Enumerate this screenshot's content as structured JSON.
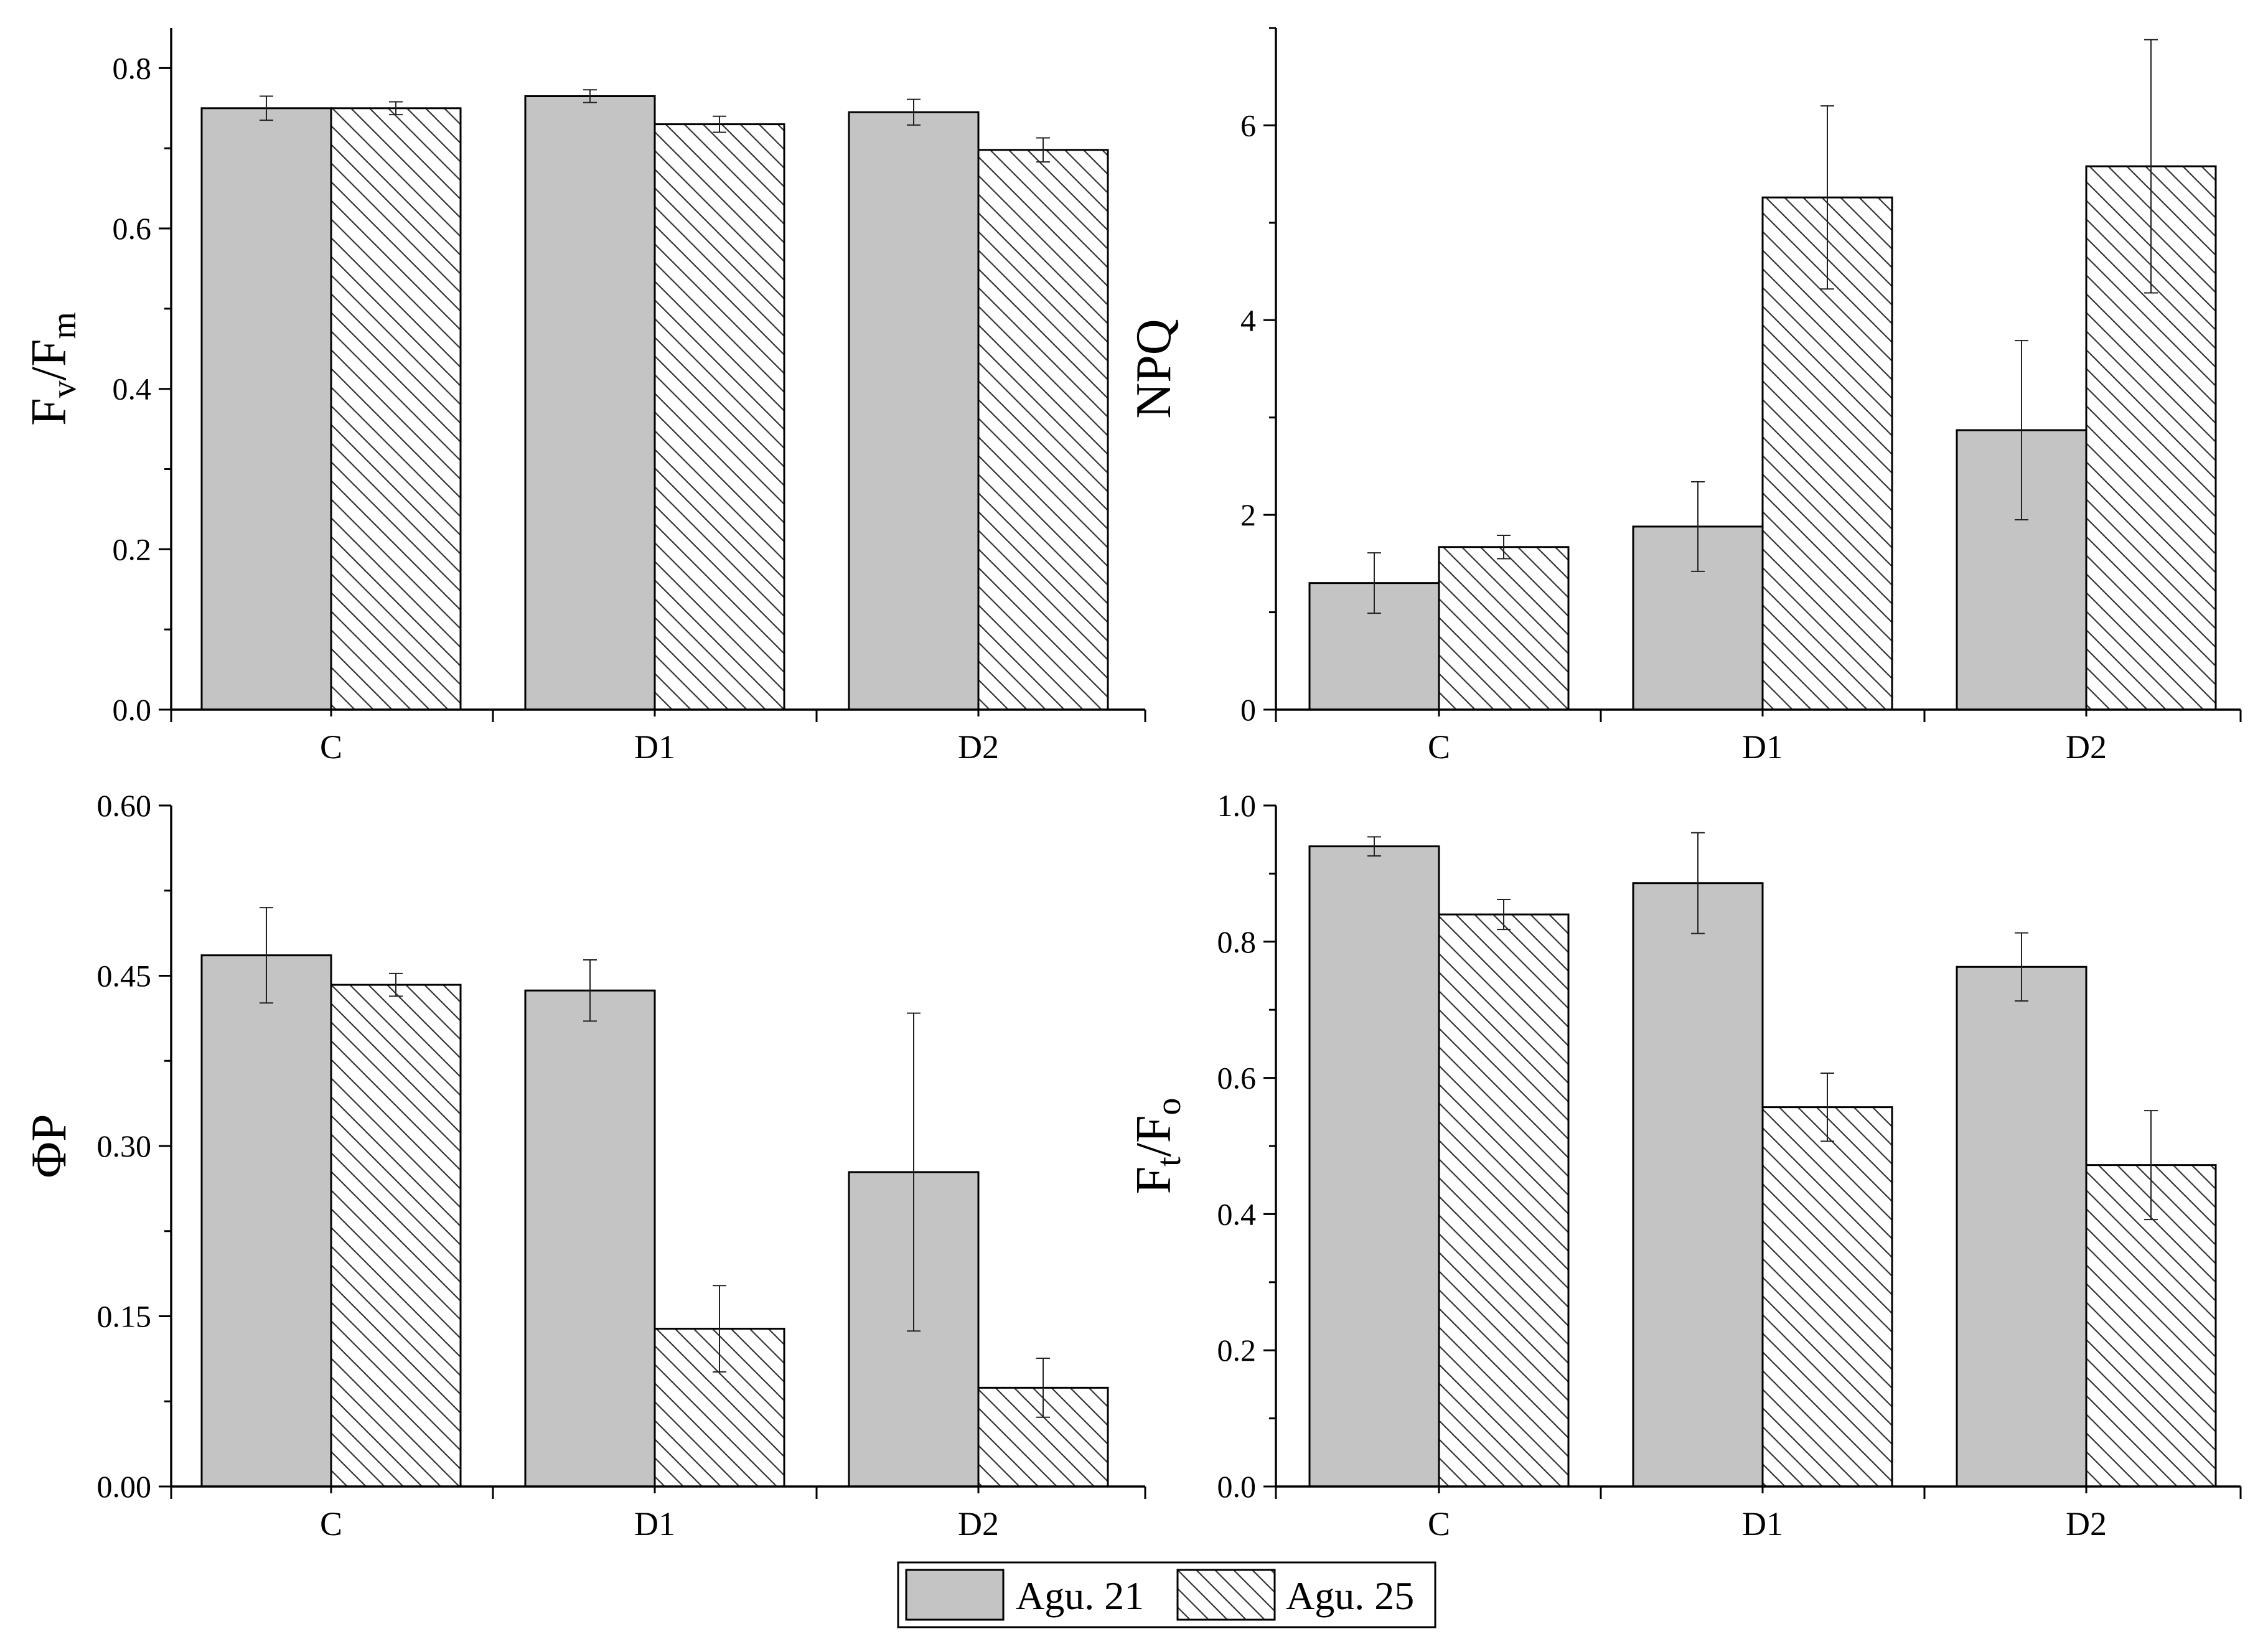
{
  "legend": {
    "series": [
      {
        "name": "Agu. 21",
        "style": "solid"
      },
      {
        "name": "Agu. 25",
        "style": "hatched"
      }
    ]
  },
  "colors": {
    "agu21_fill": "#c4c4c4",
    "agu25_fill": "#ffffff",
    "hatch": "#333333",
    "axis": "#000000"
  },
  "chart_data": [
    {
      "type": "bar",
      "panel": "top-left",
      "ylabel": {
        "main": "F",
        "sub1": "v",
        "mid": "/F",
        "sub2": "m"
      },
      "categories": [
        "C",
        "D1",
        "D2"
      ],
      "ylim": [
        0,
        0.85
      ],
      "yticks": [
        0.0,
        0.2,
        0.4,
        0.6,
        0.8
      ],
      "ytick_labels": [
        "0.0",
        "0.2",
        "0.4",
        "0.6",
        "0.8"
      ],
      "minor_ticks": true,
      "series": [
        {
          "name": "Agu. 21",
          "values": [
            0.75,
            0.765,
            0.745
          ],
          "errors": [
            0.015,
            0.008,
            0.016
          ]
        },
        {
          "name": "Agu. 25",
          "values": [
            0.75,
            0.73,
            0.698
          ],
          "errors": [
            0.008,
            0.01,
            0.015
          ]
        }
      ]
    },
    {
      "type": "bar",
      "panel": "top-right",
      "ylabel": {
        "main": "NPQ"
      },
      "categories": [
        "C",
        "D1",
        "D2"
      ],
      "ylim": [
        0,
        7
      ],
      "yticks": [
        0,
        2,
        4,
        6
      ],
      "ytick_labels": [
        "0",
        "2",
        "4",
        "6"
      ],
      "minor_ticks": true,
      "series": [
        {
          "name": "Agu. 21",
          "values": [
            1.3,
            1.88,
            2.87
          ],
          "errors": [
            0.31,
            0.46,
            0.92
          ]
        },
        {
          "name": "Agu. 25",
          "values": [
            1.67,
            5.26,
            5.58
          ],
          "errors": [
            0.12,
            0.94,
            1.3
          ]
        }
      ]
    },
    {
      "type": "bar",
      "panel": "bottom-left",
      "ylabel": {
        "main": "ΦP"
      },
      "categories": [
        "C",
        "D1",
        "D2"
      ],
      "ylim": [
        0,
        0.6
      ],
      "yticks": [
        0.0,
        0.15,
        0.3,
        0.45,
        0.6
      ],
      "ytick_labels": [
        "0.00",
        "0.15",
        "0.30",
        "0.45",
        "0.60"
      ],
      "minor_ticks": true,
      "series": [
        {
          "name": "Agu. 21",
          "values": [
            0.468,
            0.437,
            0.277
          ],
          "errors": [
            0.042,
            0.027,
            0.14
          ]
        },
        {
          "name": "Agu. 25",
          "values": [
            0.442,
            0.139,
            0.087
          ],
          "errors": [
            0.01,
            0.038,
            0.026
          ]
        }
      ]
    },
    {
      "type": "bar",
      "panel": "bottom-right",
      "ylabel": {
        "main": "F",
        "sub1": "t",
        "mid": "/F",
        "sub2": "o"
      },
      "categories": [
        "C",
        "D1",
        "D2"
      ],
      "ylim": [
        0,
        1.0
      ],
      "yticks": [
        0.0,
        0.2,
        0.4,
        0.6,
        0.8,
        1.0
      ],
      "ytick_labels": [
        "0.0",
        "0.2",
        "0.4",
        "0.6",
        "0.8",
        "1.0"
      ],
      "minor_ticks": true,
      "series": [
        {
          "name": "Agu. 21",
          "values": [
            0.94,
            0.886,
            0.763
          ],
          "errors": [
            0.014,
            0.074,
            0.05
          ]
        },
        {
          "name": "Agu. 25",
          "values": [
            0.84,
            0.557,
            0.472
          ],
          "errors": [
            0.022,
            0.05,
            0.08
          ]
        }
      ]
    }
  ]
}
